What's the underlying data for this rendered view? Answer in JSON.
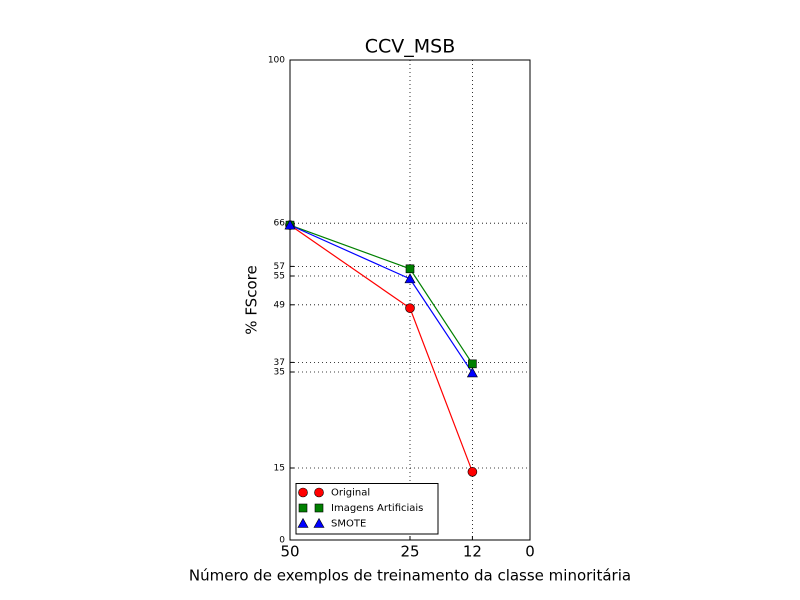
{
  "chart_data": {
    "type": "line",
    "title": "CCV_MSB",
    "x_label": "Número de exemplos de treinamento da classe minoritária",
    "y_label": "% FScore",
    "x": [
      50,
      25,
      12
    ],
    "series": [
      {
        "name": "Original",
        "color": "#ff0000",
        "marker": "o",
        "values": [
          65.6,
          48.3,
          14.2
        ]
      },
      {
        "name": "Imagens Artificiais",
        "color": "#008000",
        "marker": "s",
        "values": [
          65.6,
          56.5,
          36.7
        ]
      },
      {
        "name": "SMOTE",
        "color": "#0000ff",
        "marker": "^",
        "values": [
          65.6,
          54.4,
          34.8
        ]
      }
    ],
    "xlim": [
      50,
      0
    ],
    "xticks": [
      50,
      25,
      12,
      0
    ],
    "ylim": [
      0,
      100
    ],
    "yticks": [
      0,
      15,
      35,
      37,
      49,
      55,
      57,
      66,
      100
    ],
    "grid": true,
    "legend": "lower left"
  }
}
